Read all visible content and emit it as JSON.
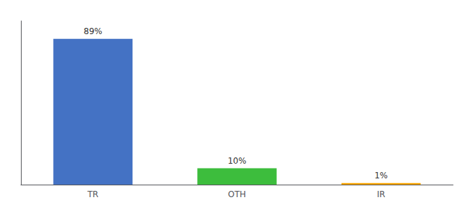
{
  "chart_data": {
    "type": "bar",
    "categories": [
      "TR",
      "OTH",
      "IR"
    ],
    "values": [
      89,
      10,
      1
    ],
    "value_labels": [
      "89%",
      "10%",
      "1%"
    ],
    "data_labels": true,
    "colors": [
      "#4472C4",
      "#3DBD3D",
      "#FFA500"
    ],
    "ylim": [
      0,
      100
    ],
    "tick_labels": "x",
    "grid": false
  }
}
